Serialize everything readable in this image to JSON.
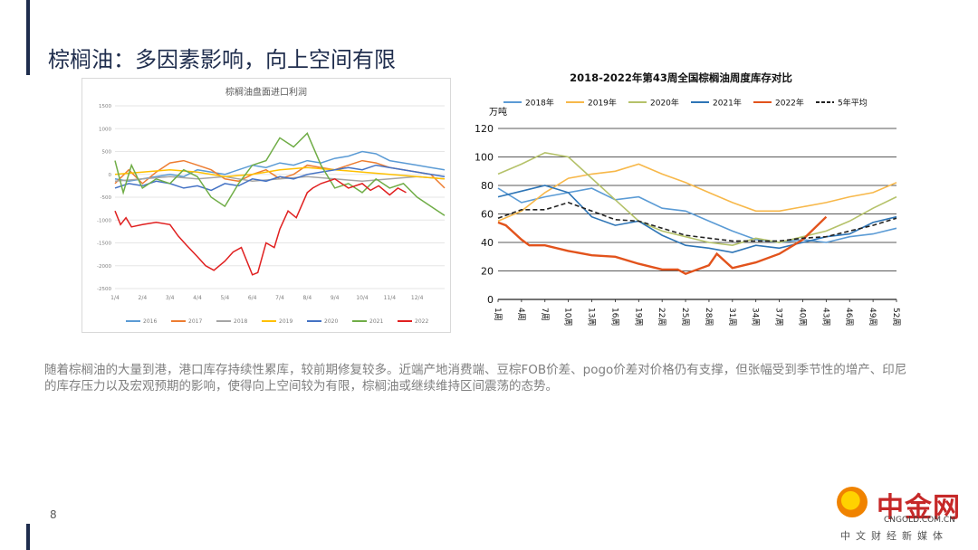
{
  "slide": {
    "title": "棕榈油：多因素影响，向上空间有限",
    "page_number": "8",
    "body_text": "随着棕榈油的大量到港，港口库存持续性累库，较前期修复较多。近端产地消费端、豆棕FOB价差、pogo价差对价格仍有支撑，但张幅受到季节性的增产、印尼的库存压力以及宏观预期的影响，使得向上空间较为有限，棕榈油或继续维持区间震荡的态势。"
  },
  "logo": {
    "name": "中金网",
    "domain": "CNGOLD.COM.CN",
    "subtitle": "中文财经新媒体"
  },
  "chart_data": [
    {
      "type": "line",
      "title": "棕榈油盘面进口利润",
      "ylim": [
        -2500,
        1500
      ],
      "yticks": [
        1500,
        1000,
        500,
        0,
        -500,
        -1000,
        -1500,
        -2000,
        -2500
      ],
      "xticks": [
        "1/4",
        "2/4",
        "3/4",
        "4/4",
        "5/4",
        "6/4",
        "7/4",
        "8/4",
        "9/4",
        "10/4",
        "11/4",
        "12/4"
      ],
      "xlim": [
        0,
        12
      ],
      "series": [
        {
          "name": "2016",
          "color": "#5b9bd5",
          "x": [
            0,
            0.5,
            1,
            1.5,
            2,
            2.5,
            3,
            3.5,
            4,
            4.5,
            5,
            5.5,
            6,
            6.5,
            7,
            7.5,
            8,
            8.5,
            9,
            9.5,
            10,
            10.5,
            11,
            11.5,
            12
          ],
          "y": [
            -100,
            -150,
            -100,
            -50,
            0,
            -50,
            100,
            50,
            0,
            100,
            200,
            150,
            250,
            200,
            300,
            250,
            350,
            400,
            500,
            450,
            300,
            250,
            200,
            150,
            100
          ]
        },
        {
          "name": "2017",
          "color": "#ed7d31",
          "x": [
            0,
            0.5,
            1,
            1.5,
            2,
            2.5,
            3,
            3.5,
            4,
            4.5,
            5,
            5.5,
            6,
            6.5,
            7,
            7.5,
            8,
            8.5,
            9,
            9.5,
            10,
            10.5,
            11,
            11.5,
            12
          ],
          "y": [
            -200,
            100,
            -200,
            50,
            250,
            300,
            200,
            100,
            -100,
            -150,
            0,
            100,
            -100,
            0,
            200,
            150,
            100,
            200,
            300,
            250,
            150,
            100,
            50,
            0,
            -300
          ]
        },
        {
          "name": "2018",
          "color": "#a5a5a5",
          "x": [
            0,
            1,
            2,
            3,
            4,
            5,
            6,
            7,
            8,
            9,
            10,
            11,
            12
          ],
          "y": [
            -150,
            -100,
            -50,
            -100,
            -50,
            -150,
            -100,
            -50,
            -100,
            -150,
            -100,
            -50,
            -100
          ]
        },
        {
          "name": "2019",
          "color": "#ffc000",
          "x": [
            0,
            1,
            2,
            3,
            4,
            5,
            6,
            7,
            8,
            9,
            10,
            11,
            12
          ],
          "y": [
            0,
            50,
            100,
            50,
            -50,
            0,
            100,
            150,
            100,
            50,
            0,
            -50,
            -100
          ]
        },
        {
          "name": "2020",
          "color": "#4472c4",
          "x": [
            0,
            0.5,
            1,
            1.5,
            2,
            2.5,
            3,
            3.5,
            4,
            4.5,
            5,
            5.5,
            6,
            6.5,
            7,
            7.5,
            8,
            8.5,
            9,
            9.5,
            10,
            10.5,
            11,
            11.5,
            12
          ],
          "y": [
            -300,
            -200,
            -250,
            -150,
            -200,
            -300,
            -250,
            -350,
            -200,
            -250,
            -100,
            -150,
            -50,
            -100,
            0,
            50,
            100,
            150,
            100,
            200,
            150,
            100,
            50,
            0,
            -50
          ]
        },
        {
          "name": "2021",
          "color": "#70ad47",
          "x": [
            0,
            0.3,
            0.6,
            1,
            1.5,
            2,
            2.5,
            3,
            3.5,
            4,
            4.5,
            5,
            5.5,
            6,
            6.5,
            7,
            7.5,
            8,
            8.5,
            9,
            9.5,
            10,
            10.5,
            11,
            11.5,
            12
          ],
          "y": [
            300,
            -400,
            200,
            -300,
            -100,
            -200,
            100,
            -50,
            -500,
            -700,
            -200,
            200,
            300,
            800,
            600,
            900,
            200,
            -300,
            -200,
            -400,
            -100,
            -300,
            -200,
            -500,
            -700,
            -900
          ]
        },
        {
          "name": "2022",
          "color": "#e02020",
          "x": [
            0,
            0.2,
            0.4,
            0.6,
            1,
            1.5,
            2,
            2.3,
            2.6,
            3,
            3.3,
            3.6,
            4,
            4.3,
            4.6,
            5,
            5.2,
            5.5,
            5.8,
            6,
            6.3,
            6.6,
            7,
            7.2,
            7.5,
            8,
            8.5,
            9,
            9.3,
            9.6,
            10,
            10.3,
            10.6
          ],
          "y": [
            -800,
            -1100,
            -950,
            -1150,
            -1100,
            -1050,
            -1100,
            -1350,
            -1550,
            -1800,
            -2000,
            -2100,
            -1900,
            -1700,
            -1600,
            -2200,
            -2150,
            -1500,
            -1600,
            -1200,
            -800,
            -950,
            -400,
            -300,
            -200,
            -100,
            -300,
            -200,
            -350,
            -250,
            -450,
            -300,
            -400
          ]
        }
      ]
    },
    {
      "type": "line",
      "title": "2018-2022年第43周全国棕榈油周度库存对比",
      "ylabel": "万吨",
      "ylim": [
        0,
        120
      ],
      "yticks": [
        0,
        20,
        40,
        60,
        80,
        100,
        120
      ],
      "xlim": [
        1,
        52
      ],
      "xticks": [
        "1周",
        "4周",
        "7周",
        "10周",
        "13周",
        "16周",
        "19周",
        "22周",
        "25周",
        "28周",
        "31周",
        "34周",
        "37周",
        "40周",
        "43周",
        "46周",
        "49周",
        "52周"
      ],
      "xtick_values": [
        1,
        4,
        7,
        10,
        13,
        16,
        19,
        22,
        25,
        28,
        31,
        34,
        37,
        40,
        43,
        46,
        49,
        52
      ],
      "series": [
        {
          "name": "2018年",
          "color": "#5b9bd5",
          "dashed": false,
          "x": [
            1,
            4,
            7,
            10,
            13,
            16,
            19,
            22,
            25,
            28,
            31,
            34,
            37,
            40,
            43,
            46,
            49,
            52
          ],
          "y": [
            78,
            68,
            72,
            75,
            78,
            70,
            72,
            64,
            62,
            55,
            48,
            42,
            40,
            42,
            40,
            44,
            46,
            50
          ]
        },
        {
          "name": "2019年",
          "color": "#f7b84a",
          "dashed": false,
          "x": [
            1,
            4,
            7,
            10,
            13,
            16,
            19,
            22,
            25,
            28,
            31,
            34,
            37,
            40,
            43,
            46,
            49,
            52
          ],
          "y": [
            55,
            62,
            75,
            85,
            88,
            90,
            95,
            88,
            82,
            75,
            68,
            62,
            62,
            65,
            68,
            72,
            75,
            82
          ]
        },
        {
          "name": "2020年",
          "color": "#b5c26a",
          "dashed": false,
          "x": [
            1,
            4,
            7,
            10,
            13,
            16,
            19,
            22,
            25,
            28,
            31,
            34,
            37,
            40,
            43,
            46,
            49,
            52
          ],
          "y": [
            88,
            95,
            103,
            100,
            85,
            70,
            55,
            48,
            44,
            40,
            38,
            43,
            40,
            44,
            48,
            55,
            64,
            72
          ]
        },
        {
          "name": "2021年",
          "color": "#2e75b6",
          "dashed": false,
          "x": [
            1,
            4,
            7,
            10,
            13,
            16,
            19,
            22,
            25,
            28,
            31,
            34,
            37,
            40,
            43,
            46,
            49,
            52
          ],
          "y": [
            72,
            76,
            80,
            75,
            58,
            52,
            55,
            45,
            38,
            36,
            33,
            38,
            36,
            40,
            44,
            46,
            54,
            58
          ]
        },
        {
          "name": "2022年",
          "color": "#e2531c",
          "dashed": false,
          "x": [
            1,
            2,
            4,
            5,
            7,
            10,
            13,
            16,
            19,
            22,
            24,
            25,
            28,
            29,
            31,
            34,
            37,
            40,
            43
          ],
          "y": [
            54,
            52,
            42,
            38,
            38,
            34,
            31,
            30,
            25,
            21,
            21,
            18,
            24,
            32,
            22,
            26,
            32,
            42,
            58
          ]
        },
        {
          "name": "5年平均",
          "color": "#222222",
          "dashed": true,
          "x": [
            1,
            4,
            7,
            10,
            13,
            16,
            19,
            22,
            25,
            28,
            31,
            34,
            37,
            40,
            43,
            46,
            49,
            52
          ],
          "y": [
            57,
            63,
            63,
            68,
            62,
            56,
            55,
            50,
            45,
            43,
            41,
            41,
            41,
            43,
            44,
            48,
            52,
            57
          ]
        }
      ]
    }
  ]
}
